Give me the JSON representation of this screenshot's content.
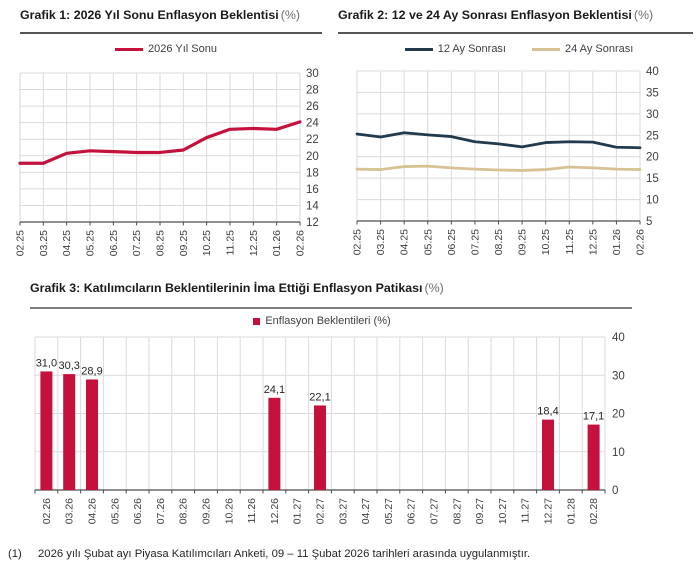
{
  "chart_data": [
    {
      "id": "grafik-1",
      "type": "line",
      "title": "Grafik 1: 2026 Yıl Sonu Enflasyon Beklentisi",
      "title_unit": "(%)",
      "categories": [
        "02.25",
        "03.25",
        "04.25",
        "05.25",
        "06.25",
        "07.25",
        "08.25",
        "09.25",
        "10.25",
        "11.25",
        "12.25",
        "01.26",
        "02.26"
      ],
      "series": [
        {
          "name": "2026 Yıl Sonu",
          "color": "#c4123c",
          "values": [
            19.1,
            19.1,
            20.3,
            20.6,
            20.5,
            20.4,
            20.4,
            20.7,
            22.2,
            23.2,
            23.3,
            23.2,
            24.1
          ]
        }
      ],
      "ylim": [
        12,
        30
      ],
      "ytick_step": 2,
      "yaxis_side": "right",
      "grid": true,
      "legend_position": "top"
    },
    {
      "id": "grafik-2",
      "type": "line",
      "title": "Grafik 2: 12 ve 24 Ay Sonrası Enflasyon Beklentisi",
      "title_unit": "(%)",
      "categories": [
        "02.25",
        "03.25",
        "04.25",
        "05.25",
        "06.25",
        "07.25",
        "08.25",
        "09.25",
        "10.25",
        "11.25",
        "12.25",
        "01.26",
        "02.26"
      ],
      "series": [
        {
          "name": "12 Ay Sonrası",
          "color": "#223a4d",
          "values": [
            25.3,
            24.6,
            25.6,
            25.1,
            24.7,
            23.5,
            23.0,
            22.3,
            23.3,
            23.5,
            23.4,
            22.2,
            22.1
          ]
        },
        {
          "name": "24 Ay Sonrası",
          "color": "#d8c294",
          "values": [
            17.1,
            17.0,
            17.7,
            17.8,
            17.4,
            17.1,
            16.9,
            16.8,
            17.0,
            17.6,
            17.4,
            17.1,
            17.0
          ]
        }
      ],
      "ylim": [
        5,
        40
      ],
      "ytick_step": 5,
      "yaxis_side": "right",
      "grid": true,
      "legend_position": "top"
    },
    {
      "id": "grafik-3",
      "type": "bar",
      "title": "Grafik 3: Katılımcıların Beklentilerinin İma Ettiği Enflasyon Patikası",
      "title_unit": "(%)",
      "categories": [
        "02.26",
        "03.26",
        "04.26",
        "05.26",
        "06.26",
        "07.26",
        "08.26",
        "09.26",
        "10.26",
        "11.26",
        "12.26",
        "01.27",
        "02.27",
        "03.27",
        "04.27",
        "05.27",
        "06.27",
        "07.27",
        "08.27",
        "09.27",
        "10.27",
        "11.27",
        "12.27",
        "01.28",
        "02.28"
      ],
      "series": [
        {
          "name": "Enflasyon Beklentileri (%)",
          "color": "#c4123c",
          "values": [
            31.0,
            30.3,
            28.9,
            null,
            null,
            null,
            null,
            null,
            null,
            null,
            24.1,
            null,
            22.1,
            null,
            null,
            null,
            null,
            null,
            null,
            null,
            null,
            null,
            18.4,
            null,
            17.1
          ]
        }
      ],
      "data_labels": [
        "31,0",
        "30,3",
        "28,9",
        "",
        "",
        "",
        "",
        "",
        "",
        "",
        "24,1",
        "",
        "22,1",
        "",
        "",
        "",
        "",
        "",
        "",
        "",
        "",
        "",
        "18,4",
        "",
        "17,1"
      ],
      "ylim": [
        0,
        40
      ],
      "ytick_step": 10,
      "yaxis_side": "right",
      "grid": true,
      "legend_position": "top"
    }
  ],
  "footnote": {
    "marker": "(1)",
    "text": "2026 yılı Şubat ayı Piyasa Katılımcıları Anketi, 09 – 11 Şubat 2026 tarihleri arasında uygulanmıştır."
  },
  "colors": {
    "accent_red": "#c4123c",
    "navy": "#223a4d",
    "tan": "#d8c294",
    "gridline": "#dadada",
    "axis": "#4d4d4d"
  }
}
